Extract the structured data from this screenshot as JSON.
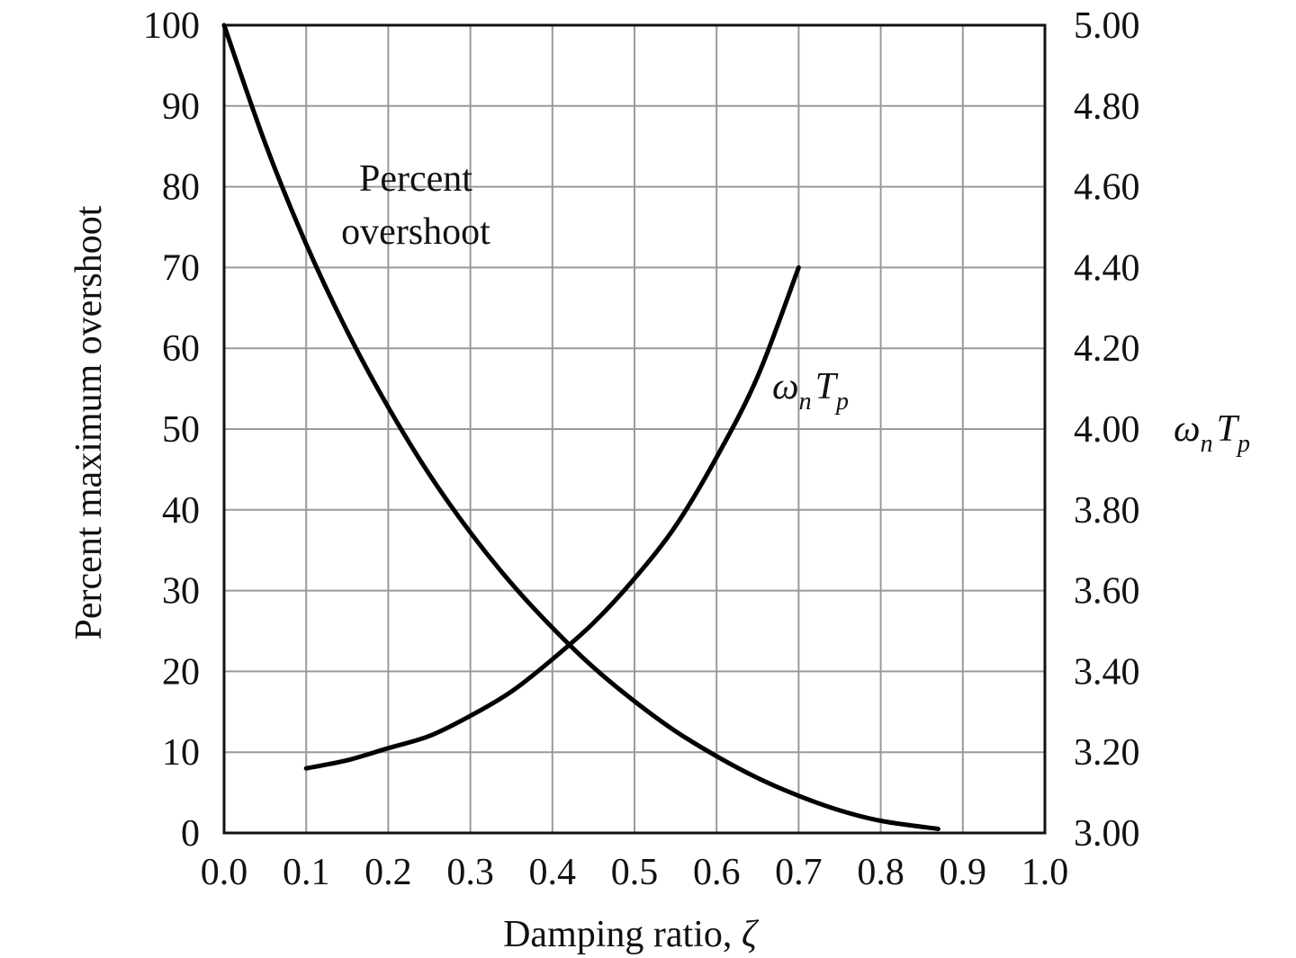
{
  "chart_data": {
    "type": "line",
    "xlabel_text": "Damping ratio, ",
    "xlabel_symbol": "ζ",
    "ylabel": "Percent maximum overshoot",
    "y2label": {
      "omega": "ω",
      "n": "n",
      "T": "T",
      "p": "p"
    },
    "xlim": [
      0,
      1
    ],
    "ylim": [
      0,
      100
    ],
    "y2lim": [
      3.0,
      5.0
    ],
    "grid": true,
    "x_ticks": [
      "0.0",
      "0.1",
      "0.2",
      "0.3",
      "0.4",
      "0.5",
      "0.6",
      "0.7",
      "0.8",
      "0.9",
      "1.0"
    ],
    "y_ticks": [
      "0",
      "10",
      "20",
      "30",
      "40",
      "50",
      "60",
      "70",
      "80",
      "90",
      "100"
    ],
    "y2_ticks": [
      "3.00",
      "3.20",
      "3.40",
      "3.60",
      "3.80",
      "4.00",
      "4.20",
      "4.40",
      "4.60",
      "4.80",
      "5.00"
    ],
    "series": [
      {
        "name": "Percent overshoot",
        "axis": "left",
        "x": [
          0.0,
          0.05,
          0.1,
          0.15,
          0.2,
          0.25,
          0.3,
          0.35,
          0.4,
          0.45,
          0.5,
          0.55,
          0.6,
          0.65,
          0.7,
          0.75,
          0.8,
          0.87
        ],
        "y": [
          100,
          85.4,
          72.9,
          62.1,
          52.7,
          44.4,
          37.2,
          30.9,
          25.4,
          20.5,
          16.3,
          12.6,
          9.5,
          6.8,
          4.6,
          2.8,
          1.5,
          0.5
        ]
      },
      {
        "name": "ω_nT_p",
        "axis": "right",
        "x": [
          0.1,
          0.15,
          0.2,
          0.25,
          0.3,
          0.35,
          0.4,
          0.45,
          0.5,
          0.55,
          0.6,
          0.65,
          0.7
        ],
        "y": [
          3.16,
          3.18,
          3.21,
          3.24,
          3.29,
          3.35,
          3.43,
          3.52,
          3.63,
          3.76,
          3.93,
          4.13,
          4.4
        ]
      }
    ],
    "annotations": {
      "overshoot_line1": "Percent",
      "overshoot_line2": "overshoot"
    }
  }
}
